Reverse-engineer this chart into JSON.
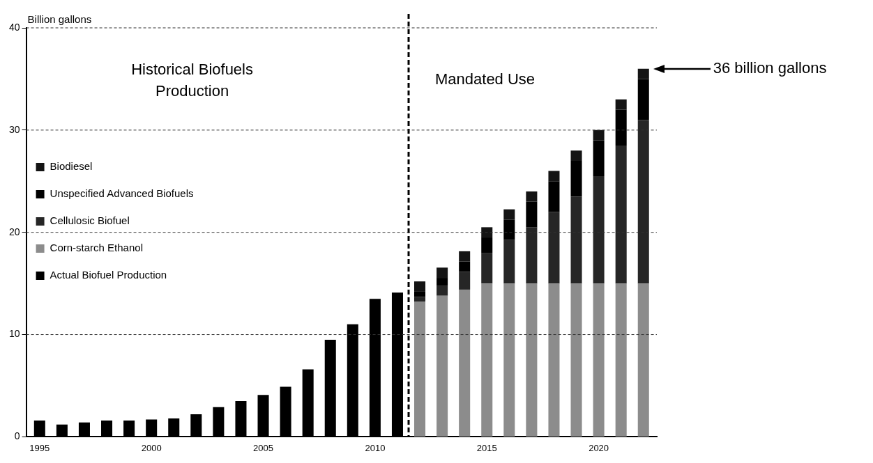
{
  "chart_data": {
    "type": "bar",
    "stacked": true,
    "x": [
      1995,
      1996,
      1997,
      1998,
      1999,
      2000,
      2001,
      2002,
      2003,
      2004,
      2005,
      2006,
      2007,
      2008,
      2009,
      2010,
      2011,
      2012,
      2013,
      2014,
      2015,
      2016,
      2017,
      2018,
      2019,
      2020,
      2021,
      2022
    ],
    "series": [
      {
        "name": "Actual Biofuel Production",
        "color": "#000000",
        "values": [
          1.6,
          1.2,
          1.4,
          1.6,
          1.6,
          1.7,
          1.8,
          2.2,
          2.9,
          3.5,
          4.1,
          4.9,
          6.6,
          9.5,
          11.0,
          13.5,
          14.1,
          null,
          null,
          null,
          null,
          null,
          null,
          null,
          null,
          null,
          null,
          null
        ]
      },
      {
        "name": "Corn-starch Ethanol",
        "color": "#8c8c8c",
        "values": [
          null,
          null,
          null,
          null,
          null,
          null,
          null,
          null,
          null,
          null,
          null,
          null,
          null,
          null,
          null,
          null,
          null,
          13.2,
          13.8,
          14.4,
          15,
          15,
          15,
          15,
          15,
          15,
          15,
          15
        ]
      },
      {
        "name": "Cellulosic Biofuel",
        "color": "#262626",
        "values": [
          null,
          null,
          null,
          null,
          null,
          null,
          null,
          null,
          null,
          null,
          null,
          null,
          null,
          null,
          null,
          null,
          null,
          0.5,
          1.0,
          1.75,
          3.0,
          4.25,
          5.5,
          7.0,
          8.5,
          10.5,
          13.5,
          16.0
        ]
      },
      {
        "name": "Unspecified Advanced Biofuels",
        "color": "#000000",
        "values": [
          null,
          null,
          null,
          null,
          null,
          null,
          null,
          null,
          null,
          null,
          null,
          null,
          null,
          null,
          null,
          null,
          null,
          0.5,
          0.75,
          1.0,
          1.5,
          2.0,
          2.5,
          3.0,
          3.5,
          3.5,
          3.5,
          4.0
        ]
      },
      {
        "name": "Biodiesel",
        "color": "#141414",
        "values": [
          null,
          null,
          null,
          null,
          null,
          null,
          null,
          null,
          null,
          null,
          null,
          null,
          null,
          null,
          null,
          null,
          null,
          1.0,
          1.0,
          1.0,
          1.0,
          1.0,
          1.0,
          1.0,
          1.0,
          1.0,
          1.0,
          1.0
        ]
      }
    ],
    "ylabel": "Billion gallons",
    "xlim": [
      1994.4,
      2022.6
    ],
    "xticks": [
      1995,
      2000,
      2005,
      2010,
      2015,
      2020
    ],
    "ylim": [
      0,
      40
    ],
    "yticks": [
      0,
      10,
      20,
      30,
      40
    ],
    "grid": "y",
    "legend": "left",
    "ref_lines": [
      {
        "axis": "x",
        "value": 2011.5,
        "line_style": "dashed"
      }
    ],
    "annotations": [
      "Historical Biofuels Production",
      "Mandated Use",
      "36 billion gallons"
    ]
  }
}
